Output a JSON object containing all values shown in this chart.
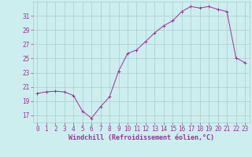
{
  "x": [
    0,
    1,
    2,
    3,
    4,
    5,
    6,
    7,
    8,
    9,
    10,
    11,
    12,
    13,
    14,
    15,
    16,
    17,
    18,
    19,
    20,
    21,
    22,
    23
  ],
  "y": [
    20.1,
    20.3,
    20.4,
    20.3,
    19.8,
    17.6,
    16.6,
    18.2,
    19.6,
    23.2,
    25.7,
    26.2,
    27.4,
    28.6,
    29.6,
    30.3,
    31.6,
    32.3,
    32.1,
    32.3,
    31.9,
    31.6,
    25.1,
    24.4
  ],
  "line_color": "#993399",
  "marker": "+",
  "background_color": "#cceeee",
  "grid_color": "#aacccc",
  "xlabel": "Windchill (Refroidissement éolien,°C)",
  "xlim": [
    -0.5,
    23.5
  ],
  "ylim": [
    16,
    33
  ],
  "yticks": [
    17,
    19,
    21,
    23,
    25,
    27,
    29,
    31
  ],
  "xticks": [
    0,
    1,
    2,
    3,
    4,
    5,
    6,
    7,
    8,
    9,
    10,
    11,
    12,
    13,
    14,
    15,
    16,
    17,
    18,
    19,
    20,
    21,
    22,
    23
  ],
  "tick_fontsize": 5.5,
  "xlabel_fontsize": 6,
  "figsize": [
    3.2,
    2.0
  ],
  "dpi": 100
}
